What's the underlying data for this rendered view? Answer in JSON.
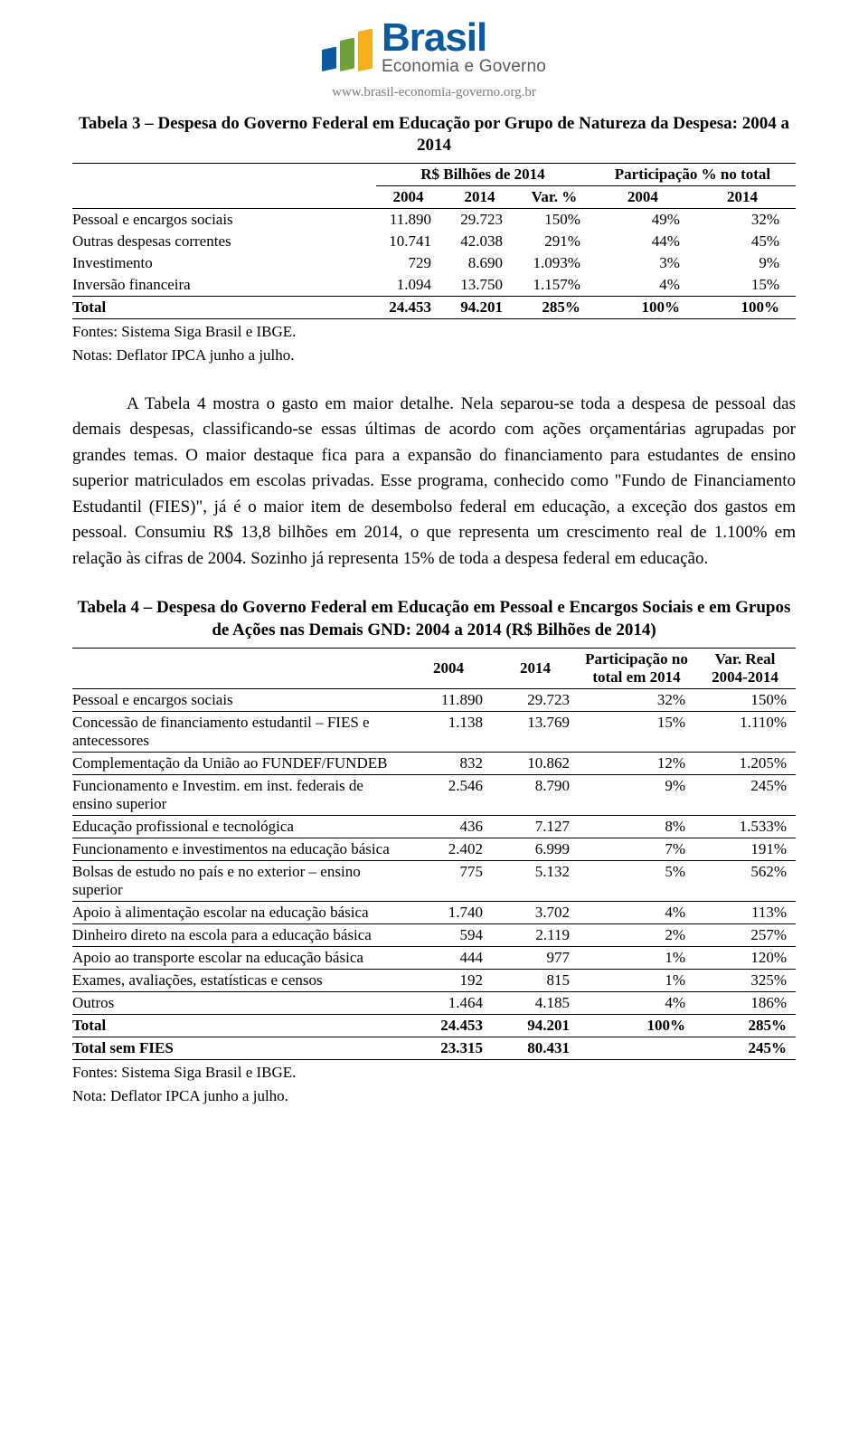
{
  "logo": {
    "title": "Brasil",
    "subtitle": "Economia e Governo",
    "bar_colors": [
      "#0a5aa0",
      "#6ea13a",
      "#f5b01a"
    ],
    "title_color": "#0a5aa0",
    "subtitle_color": "#5a5a5a"
  },
  "site_url": "www.brasil-economia-governo.org.br",
  "table3": {
    "title": "Tabela 3 – Despesa do Governo Federal em Educação por Grupo de Natureza da Despesa: 2004 a 2014",
    "header_group1": "R$ Bilhões de 2014",
    "header_group2": "Participação % no total",
    "col_2004": "2004",
    "col_2014": "2014",
    "col_var": "Var. %",
    "col_p2004": "2004",
    "col_p2014": "2014",
    "rows": [
      {
        "label": "Pessoal e encargos sociais",
        "c2004": "11.890",
        "c2014": "29.723",
        "var": "150%",
        "p2004": "49%",
        "p2014": "32%"
      },
      {
        "label": "Outras despesas correntes",
        "c2004": "10.741",
        "c2014": "42.038",
        "var": "291%",
        "p2004": "44%",
        "p2014": "45%"
      },
      {
        "label": "Investimento",
        "c2004": "729",
        "c2014": "8.690",
        "var": "1.093%",
        "p2004": "3%",
        "p2014": "9%"
      },
      {
        "label": "Inversão financeira",
        "c2004": "1.094",
        "c2014": "13.750",
        "var": "1.157%",
        "p2004": "4%",
        "p2014": "15%"
      }
    ],
    "total": {
      "label": "Total",
      "c2004": "24.453",
      "c2014": "94.201",
      "var": "285%",
      "p2004": "100%",
      "p2014": "100%"
    },
    "fontes": "Fontes: Sistema Siga Brasil e IBGE.",
    "notas": "Notas: Deflator IPCA junho a julho."
  },
  "paragraph": "A Tabela 4 mostra o gasto em maior detalhe. Nela separou-se toda a despesa de pessoal das demais despesas, classificando-se essas últimas de acordo com ações orçamentárias agrupadas por grandes temas. O maior destaque fica para a expansão do financiamento para estudantes de ensino superior matriculados em escolas privadas. Esse programa, conhecido como \"Fundo de Financiamento Estudantil (FIES)\", já é o maior item de desembolso federal em educação, a exceção dos gastos em pessoal. Consumiu R$ 13,8 bilhões em 2014, o que representa um crescimento real de 1.100% em relação às cifras de 2004. Sozinho já representa 15% de toda a despesa federal em educação.",
  "table4": {
    "title": "Tabela 4 – Despesa do Governo Federal em Educação em Pessoal e Encargos Sociais e em Grupos de Ações nas Demais GND: 2004 a 2014 (R$ Bilhões de 2014)",
    "col_2004": "2004",
    "col_2014": "2014",
    "col_part": "Participação no total em 2014",
    "col_var": "Var. Real 2004-2014",
    "rows": [
      {
        "label": "Pessoal e encargos sociais",
        "c2004": "11.890",
        "c2014": "29.723",
        "part": "32%",
        "var": "150%"
      },
      {
        "label": "Concessão de financiamento estudantil – FIES e antecessores",
        "c2004": "1.138",
        "c2014": "13.769",
        "part": "15%",
        "var": "1.110%"
      },
      {
        "label": "Complementação da União ao FUNDEF/FUNDEB",
        "c2004": "832",
        "c2014": "10.862",
        "part": "12%",
        "var": "1.205%"
      },
      {
        "label": "Funcionamento e Investim. em inst. federais de ensino superior",
        "c2004": "2.546",
        "c2014": "8.790",
        "part": "9%",
        "var": "245%"
      },
      {
        "label": "Educação profissional e tecnológica",
        "c2004": "436",
        "c2014": "7.127",
        "part": "8%",
        "var": "1.533%"
      },
      {
        "label": "Funcionamento e investimentos na educação básica",
        "c2004": "2.402",
        "c2014": "6.999",
        "part": "7%",
        "var": "191%"
      },
      {
        "label": "Bolsas de estudo no país e no exterior – ensino superior",
        "c2004": "775",
        "c2014": "5.132",
        "part": "5%",
        "var": "562%"
      },
      {
        "label": "Apoio à alimentação escolar na educação básica",
        "c2004": "1.740",
        "c2014": "3.702",
        "part": "4%",
        "var": "113%"
      },
      {
        "label": "Dinheiro direto na escola para a educação básica",
        "c2004": "594",
        "c2014": "2.119",
        "part": "2%",
        "var": "257%"
      },
      {
        "label": "Apoio ao transporte escolar na educação básica",
        "c2004": "444",
        "c2014": "977",
        "part": "1%",
        "var": "120%"
      },
      {
        "label": "Exames, avaliações, estatísticas e censos",
        "c2004": "192",
        "c2014": "815",
        "part": "1%",
        "var": "325%"
      },
      {
        "label": "Outros",
        "c2004": "1.464",
        "c2014": "4.185",
        "part": "4%",
        "var": "186%"
      }
    ],
    "total": {
      "label": "Total",
      "c2004": "24.453",
      "c2014": "94.201",
      "part": "100%",
      "var": "285%"
    },
    "total_sem_fies": {
      "label": "Total sem FIES",
      "c2004": "23.315",
      "c2014": "80.431",
      "part": "",
      "var": "245%"
    },
    "fontes": "Fontes: Sistema Siga Brasil e IBGE.",
    "notas": "Nota: Deflator IPCA junho a julho."
  }
}
